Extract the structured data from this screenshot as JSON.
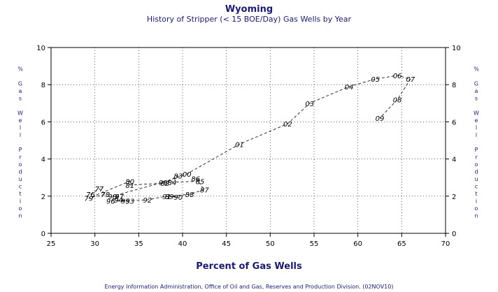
{
  "chart_data": {
    "type": "line",
    "title": "Wyoming",
    "subtitle": "History of Stripper (< 15 BOE/Day) Gas Wells by Year",
    "xlabel": "Percent of Gas Wells",
    "ylabel": "% Gas Well Production",
    "xlim": [
      25,
      70
    ],
    "ylim": [
      0,
      10
    ],
    "xticks": [
      "25",
      "30",
      "35",
      "40",
      "45",
      "50",
      "55",
      "60",
      "65",
      "70"
    ],
    "yticks": [
      "0",
      "2",
      "4",
      "6",
      "8",
      "10"
    ],
    "grid": true,
    "footer": "Energy Information Administration, Office of Oil and Gas, Reserves and Production Division. (02NOV10)",
    "points": [
      {
        "label": "79",
        "x": 29.3,
        "y": 1.9
      },
      {
        "label": "76",
        "x": 29.5,
        "y": 2.1
      },
      {
        "label": "77",
        "x": 30.5,
        "y": 2.4
      },
      {
        "label": "78",
        "x": 31.2,
        "y": 2.1
      },
      {
        "label": "80",
        "x": 34.0,
        "y": 2.8
      },
      {
        "label": "81",
        "x": 34.0,
        "y": 2.6
      },
      {
        "label": "82",
        "x": 38.0,
        "y": 2.7
      },
      {
        "label": "83",
        "x": 39.5,
        "y": 3.1
      },
      {
        "label": "84",
        "x": 38.8,
        "y": 2.75
      },
      {
        "label": "85",
        "x": 42.0,
        "y": 2.8
      },
      {
        "label": "86",
        "x": 41.5,
        "y": 2.95
      },
      {
        "label": "87",
        "x": 42.5,
        "y": 2.35
      },
      {
        "label": "88",
        "x": 40.8,
        "y": 2.1
      },
      {
        "label": "89",
        "x": 38.5,
        "y": 2.0
      },
      {
        "label": "90",
        "x": 39.5,
        "y": 1.95
      },
      {
        "label": "91",
        "x": 38.2,
        "y": 2.0
      },
      {
        "label": "92",
        "x": 36.0,
        "y": 1.8
      },
      {
        "label": "93",
        "x": 34.0,
        "y": 1.75
      },
      {
        "label": "94",
        "x": 32.7,
        "y": 1.8
      },
      {
        "label": "95",
        "x": 33.5,
        "y": 1.75
      },
      {
        "label": "96",
        "x": 31.8,
        "y": 1.75
      },
      {
        "label": "97",
        "x": 32.8,
        "y": 2.0
      },
      {
        "label": "98",
        "x": 32.0,
        "y": 2.0
      },
      {
        "label": "99",
        "x": 37.8,
        "y": 2.75
      },
      {
        "label": "00",
        "x": 40.5,
        "y": 3.2
      },
      {
        "label": "01",
        "x": 46.5,
        "y": 4.8
      },
      {
        "label": "02",
        "x": 52.0,
        "y": 5.9
      },
      {
        "label": "03",
        "x": 54.5,
        "y": 7.0
      },
      {
        "label": "04",
        "x": 59.0,
        "y": 7.9
      },
      {
        "label": "05",
        "x": 62.0,
        "y": 8.3
      },
      {
        "label": "06",
        "x": 64.5,
        "y": 8.5
      },
      {
        "label": "07",
        "x": 66.0,
        "y": 8.3
      },
      {
        "label": "08",
        "x": 64.5,
        "y": 7.2
      },
      {
        "label": "09",
        "x": 62.5,
        "y": 6.2
      }
    ]
  }
}
